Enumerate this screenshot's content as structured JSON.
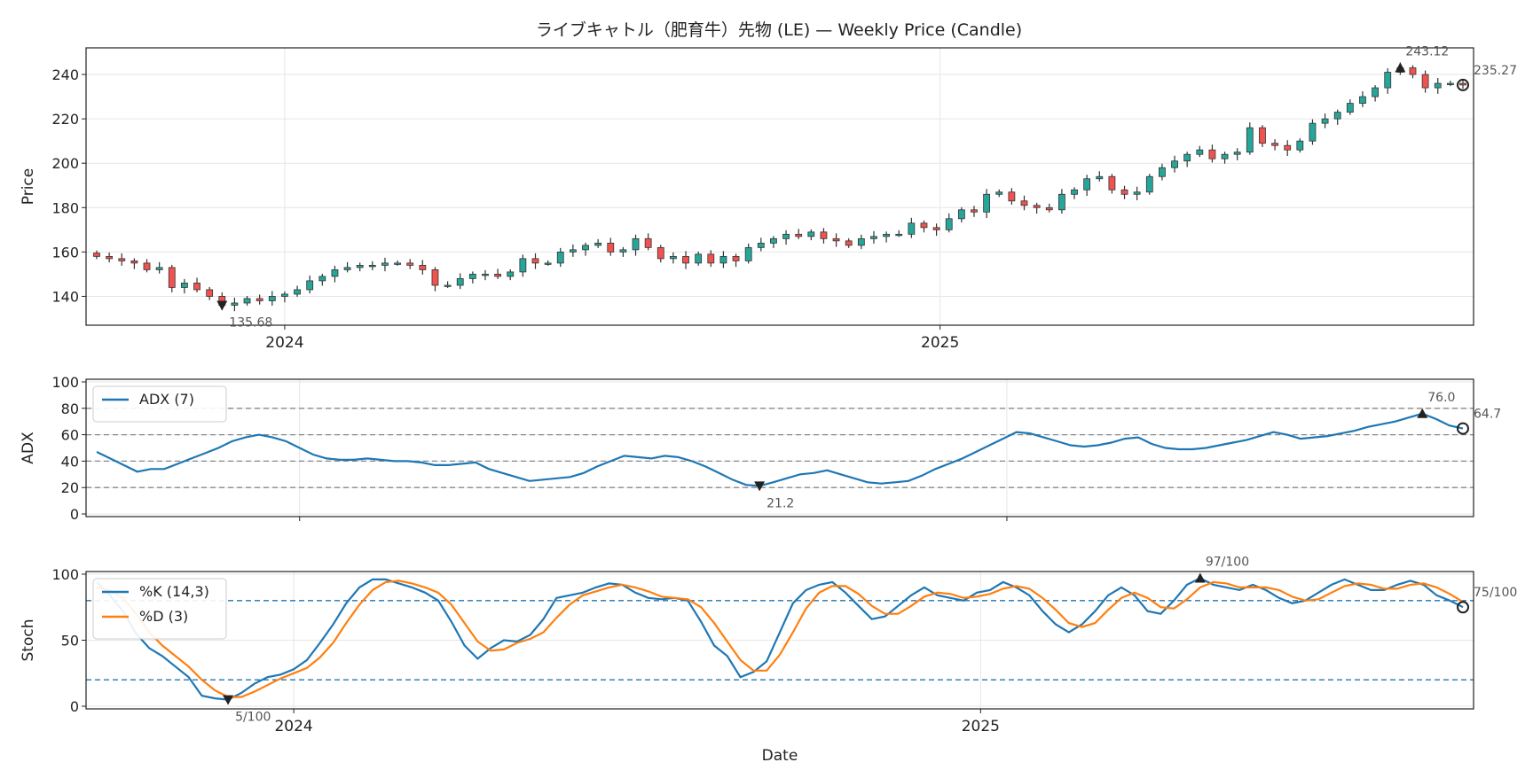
{
  "chart_data": [
    {
      "type": "candlestick",
      "title": "ライブキャトル（肥育牛）先物 (LE) — Weekly Price (Candle)",
      "ylabel": "Price",
      "xlabel": "",
      "x_ticks": [
        "2024",
        "2025"
      ],
      "ylim": [
        127,
        252
      ],
      "y_ticks": [
        140,
        160,
        180,
        200,
        220,
        240
      ],
      "grid": true,
      "start_date": "2023-09-18",
      "closes": [
        158,
        157,
        156,
        155,
        152,
        153,
        144,
        146,
        143,
        140,
        136,
        137,
        139,
        138,
        140,
        141,
        143,
        147,
        149,
        152,
        153,
        154,
        154,
        155,
        155,
        154,
        152,
        145,
        145,
        148,
        150,
        150,
        149,
        151,
        157,
        155,
        155,
        160,
        161,
        163,
        164,
        160,
        161,
        166,
        162,
        157,
        158,
        155,
        159,
        155,
        158,
        156,
        162,
        164,
        166,
        168,
        167,
        169,
        166,
        165,
        163,
        166,
        167,
        168,
        168,
        173,
        171,
        170,
        175,
        179,
        178,
        186,
        187,
        183,
        181,
        180,
        179,
        186,
        188,
        193,
        194,
        188,
        186,
        187,
        194,
        198,
        201,
        204,
        206,
        202,
        204,
        205,
        216,
        209,
        208,
        206,
        210,
        218,
        220,
        223,
        227,
        230,
        234,
        241,
        243,
        240,
        234,
        236,
        236,
        235.27
      ],
      "colors": {
        "up": "#26a69a",
        "down": "#ef5350",
        "wick": "#333333"
      },
      "annotations": [
        {
          "label": "135.68",
          "kind": "low"
        },
        {
          "label": "243.12",
          "kind": "high"
        },
        {
          "label": "235.27",
          "kind": "last"
        }
      ]
    },
    {
      "type": "line",
      "ylabel": "ADX",
      "ylim": [
        -2,
        102
      ],
      "y_ticks": [
        0,
        20,
        40,
        60,
        80,
        100
      ],
      "ref_lines": [
        20,
        40,
        60,
        80
      ],
      "series": [
        {
          "name": "ADX (7)",
          "color": "#1f77b4",
          "values": [
            47,
            42,
            37,
            32,
            34,
            34,
            38,
            42,
            46,
            50,
            55,
            58,
            60,
            58,
            55,
            50,
            45,
            42,
            41,
            41,
            42,
            41,
            40,
            40,
            39,
            37,
            37,
            38,
            39,
            34,
            31,
            28,
            25,
            26,
            27,
            28,
            31,
            36,
            40,
            44,
            43,
            42,
            44,
            43,
            40,
            36,
            31,
            26,
            22,
            21.2,
            24,
            27,
            30,
            31,
            33,
            30,
            27,
            24,
            23,
            24,
            25,
            29,
            34,
            38,
            42,
            47,
            52,
            57,
            62,
            61,
            58,
            55,
            52,
            51,
            52,
            54,
            57,
            58,
            53,
            50,
            49,
            49,
            50,
            52,
            54,
            56,
            59,
            62,
            60,
            57,
            58,
            59,
            61,
            63,
            66,
            68,
            70,
            73,
            76,
            72,
            67,
            64.7
          ]
        }
      ],
      "legend": "top-left",
      "annotations": [
        {
          "label": "21.2",
          "kind": "low"
        },
        {
          "label": "76.0",
          "kind": "high"
        },
        {
          "label": "64.7",
          "kind": "last"
        }
      ]
    },
    {
      "type": "line",
      "ylabel": "Stoch",
      "xlabel": "Date",
      "ylim": [
        -2,
        102
      ],
      "y_ticks": [
        0,
        50,
        100
      ],
      "ref_lines": [
        20,
        80
      ],
      "series": [
        {
          "name": "%K (14,3)",
          "color": "#1f77b4",
          "values": [
            94,
            84,
            72,
            55,
            44,
            38,
            30,
            22,
            8,
            6,
            5,
            10,
            17,
            22,
            24,
            28,
            35,
            48,
            62,
            78,
            90,
            96,
            96,
            93,
            90,
            86,
            80,
            64,
            46,
            36,
            44,
            50,
            49,
            54,
            66,
            82,
            84,
            86,
            90,
            93,
            92,
            86,
            82,
            81,
            82,
            80,
            64,
            46,
            38,
            22,
            26,
            34,
            56,
            78,
            88,
            92,
            94,
            86,
            76,
            66,
            68,
            76,
            84,
            90,
            84,
            82,
            80,
            86,
            88,
            94,
            90,
            84,
            72,
            62,
            56,
            62,
            72,
            84,
            90,
            84,
            72,
            70,
            80,
            92,
            97,
            92,
            90,
            88,
            92,
            88,
            82,
            78,
            80,
            86,
            92,
            96,
            92,
            88,
            88,
            92,
            95,
            92,
            84,
            80,
            75
          ]
        },
        {
          "name": "%D (3)",
          "color": "#ff7f0e",
          "values": [
            90,
            88,
            82,
            70,
            56,
            46,
            38,
            30,
            20,
            12,
            7,
            7,
            11,
            16,
            21,
            25,
            29,
            37,
            48,
            63,
            77,
            88,
            94,
            95,
            93,
            90,
            86,
            77,
            63,
            49,
            42,
            43,
            48,
            51,
            56,
            67,
            77,
            84,
            87,
            90,
            92,
            90,
            87,
            83,
            82,
            81,
            75,
            63,
            49,
            35,
            27,
            27,
            39,
            56,
            74,
            86,
            91,
            91,
            85,
            76,
            70,
            70,
            76,
            83,
            86,
            85,
            82,
            83,
            85,
            89,
            91,
            89,
            82,
            73,
            63,
            60,
            63,
            73,
            82,
            86,
            82,
            75,
            74,
            81,
            90,
            94,
            93,
            90,
            90,
            90,
            88,
            83,
            80,
            81,
            86,
            91,
            93,
            92,
            89,
            89,
            92,
            93,
            90,
            85,
            79
          ]
        }
      ],
      "legend": "top-left",
      "x_ticks": [
        "2024",
        "2025"
      ],
      "annotations": [
        {
          "label": "5/100",
          "kind": "low"
        },
        {
          "label": "97/100",
          "kind": "high"
        },
        {
          "label": "75/100",
          "kind": "last"
        }
      ]
    }
  ]
}
